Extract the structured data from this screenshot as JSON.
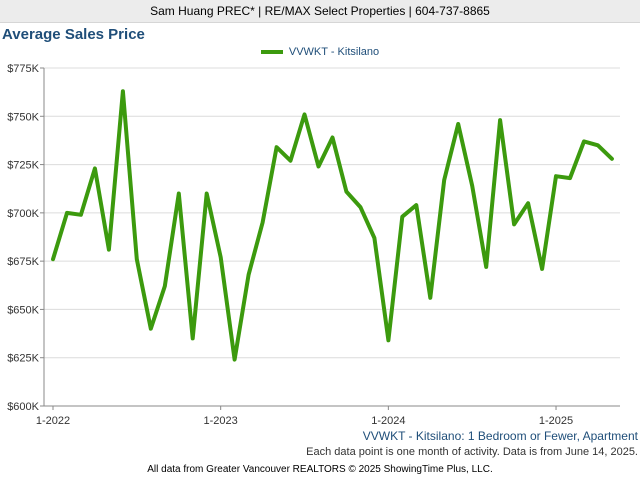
{
  "header": {
    "text": "Sam Huang PREC* | RE/MAX Select Properties | 604-737-8865"
  },
  "chart_title": "Average Sales Price",
  "legend": {
    "label": "VVWKT - Kitsilano"
  },
  "colors": {
    "line": "#3c9a0e",
    "title": "#1f4e79",
    "grid": "#dcdcdc"
  },
  "notes": {
    "series": "VVWKT - Kitsilano: 1 Bedroom or Fewer, Apartment",
    "period": "Each data point is one month of activity. Data is from June 14, 2025."
  },
  "footer": "All data from Greater Vancouver REALTORS © 2025 ShowingTime Plus, LLC.",
  "chart_data": {
    "type": "line",
    "title": "Average Sales Price",
    "xlabel": "",
    "ylabel": "",
    "ylim": [
      600000,
      775000
    ],
    "y_ticks": [
      600000,
      625000,
      650000,
      675000,
      700000,
      725000,
      750000,
      775000
    ],
    "y_tick_labels": [
      "$600K",
      "$625K",
      "$650K",
      "$675K",
      "$700K",
      "$725K",
      "$750K",
      "$775K"
    ],
    "x_tick_labels": [
      "1-2022",
      "1-2023",
      "1-2024",
      "1-2025"
    ],
    "x_tick_index": [
      0,
      12,
      24,
      36
    ],
    "grid": true,
    "legend_position": "top-center",
    "series": [
      {
        "name": "VVWKT - Kitsilano",
        "color": "#3c9a0e",
        "x": [
          "2022-01",
          "2022-02",
          "2022-03",
          "2022-04",
          "2022-05",
          "2022-06",
          "2022-07",
          "2022-08",
          "2022-09",
          "2022-10",
          "2022-11",
          "2022-12",
          "2023-01",
          "2023-02",
          "2023-03",
          "2023-04",
          "2023-05",
          "2023-06",
          "2023-07",
          "2023-08",
          "2023-09",
          "2023-10",
          "2023-11",
          "2023-12",
          "2024-01",
          "2024-02",
          "2024-03",
          "2024-04",
          "2024-05",
          "2024-06",
          "2024-07",
          "2024-08",
          "2024-09",
          "2024-10",
          "2024-11",
          "2024-12",
          "2025-01",
          "2025-02",
          "2025-03",
          "2025-04",
          "2025-05"
        ],
        "values": [
          676000,
          700000,
          699000,
          723000,
          681000,
          763000,
          676000,
          640000,
          662000,
          710000,
          635000,
          710000,
          677000,
          624000,
          668000,
          695000,
          734000,
          727000,
          751000,
          724000,
          739000,
          711000,
          703000,
          687000,
          634000,
          698000,
          704000,
          656000,
          717000,
          746000,
          714000,
          672000,
          748000,
          694000,
          705000,
          671000,
          719000,
          718000,
          737000,
          735000,
          728000
        ]
      }
    ]
  }
}
